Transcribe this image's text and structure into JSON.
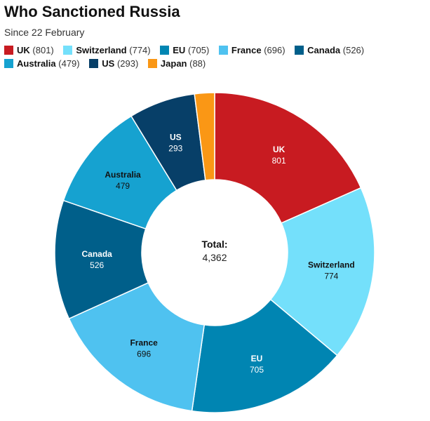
{
  "chart_data": {
    "type": "pie",
    "title": "Who Sanctioned Russia",
    "subtitle": "Since 22 February",
    "center_label": "Total:",
    "center_value": "4,362",
    "legend_position": "top",
    "slices": [
      {
        "name": "UK",
        "value": 801,
        "value_label": "801",
        "legend_value": "(801)",
        "color": "#c81b21",
        "label_color": "#ffffff",
        "show_label": true
      },
      {
        "name": "Switzerland",
        "value": 774,
        "value_label": "774",
        "legend_value": "(774)",
        "color": "#74e0fb",
        "label_color": "#111111",
        "show_label": true
      },
      {
        "name": "EU",
        "value": 705,
        "value_label": "705",
        "legend_value": "(705)",
        "color": "#0085b2",
        "label_color": "#ffffff",
        "show_label": true
      },
      {
        "name": "France",
        "value": 696,
        "value_label": "696",
        "legend_value": "(696)",
        "color": "#4fc2f0",
        "label_color": "#111111",
        "show_label": true
      },
      {
        "name": "Canada",
        "value": 526,
        "value_label": "526",
        "legend_value": "(526)",
        "color": "#005f8a",
        "label_color": "#ffffff",
        "show_label": true
      },
      {
        "name": "Australia",
        "value": 479,
        "value_label": "479",
        "legend_value": "(479)",
        "color": "#16a2d0",
        "label_color": "#111111",
        "show_label": true
      },
      {
        "name": "US",
        "value": 293,
        "value_label": "293",
        "legend_value": "(293)",
        "color": "#073f68",
        "label_color": "#ffffff",
        "show_label": true
      },
      {
        "name": "Japan",
        "value": 88,
        "value_label": "88",
        "legend_value": "(88)",
        "color": "#fa9715",
        "label_color": "#111111",
        "show_label": false
      }
    ]
  }
}
